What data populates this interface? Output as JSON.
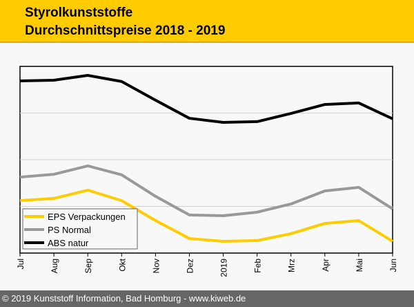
{
  "header": {
    "title_line1": "Styrolkunststoffe",
    "title_line2": "Durchschnittspreise 2018 - 2019"
  },
  "footer": {
    "text": "© 2019 Kunststoff Information, Bad Homburg - www.kiweb.de"
  },
  "chart_data": {
    "type": "line",
    "title": "Styrolkunststoffe Durchschnittspreise 2018 - 2019",
    "xlabel": "",
    "ylabel": "",
    "ylim": [
      0,
      100
    ],
    "y_ticks_hidden": true,
    "gridlines": [
      25,
      50,
      75
    ],
    "legend_position": "bottom-left",
    "categories": [
      "Jul",
      "Aug",
      "Sep",
      "Okt",
      "Nov",
      "Dez",
      "2019",
      "Feb",
      "Mrz",
      "Apr",
      "Mai",
      "Jun"
    ],
    "series": [
      {
        "name": "EPS Verpackungen",
        "color": "#ffcc00",
        "values": [
          28.1,
          29.3,
          33.7,
          28.1,
          17.4,
          7.8,
          6.3,
          6.7,
          10.4,
          15.9,
          17.4,
          6.3
        ]
      },
      {
        "name": "PS Normal",
        "color": "#999999",
        "values": [
          40.7,
          42.2,
          46.7,
          41.9,
          30.4,
          20.4,
          20.0,
          21.9,
          26.3,
          33.3,
          35.2,
          23.7
        ]
      },
      {
        "name": "ABS natur",
        "color": "#000000",
        "values": [
          92.2,
          92.6,
          95.2,
          91.9,
          81.9,
          72.2,
          70.0,
          70.4,
          74.8,
          79.6,
          80.4,
          71.9
        ]
      }
    ]
  }
}
